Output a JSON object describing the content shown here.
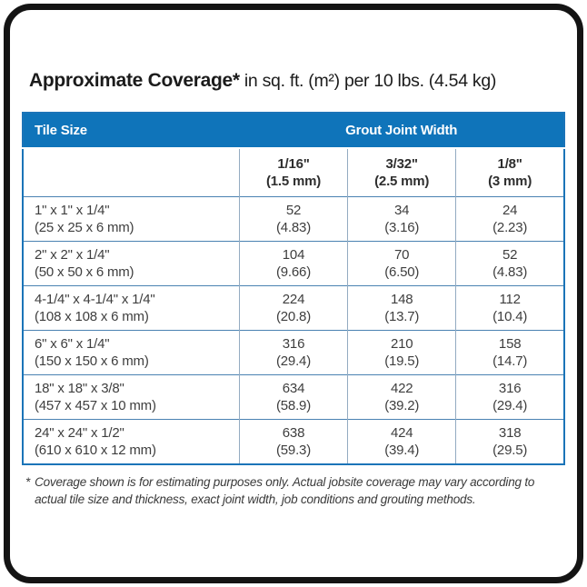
{
  "title": {
    "bold": "Approximate Coverage*",
    "rest": " in sq. ft. (m²) per 10 lbs. (4.54 kg)"
  },
  "colors": {
    "header_blue": "#0f74ba",
    "table_outer_border": "#1b74b8",
    "row_divider": "#4a82b2",
    "column_divider": "#93abc1",
    "card_border": "#141414",
    "body_text": "#3e3e3e"
  },
  "table": {
    "header": {
      "tile_size": "Tile Size",
      "grout_joint_width": "Grout Joint Width"
    },
    "columns": [
      {
        "size": "1/16\"",
        "mm": "(1.5 mm)"
      },
      {
        "size": "3/32\"",
        "mm": "(2.5 mm)"
      },
      {
        "size": "1/8\"",
        "mm": "(3 mm)"
      }
    ],
    "rows": [
      {
        "tile": "1\" x 1\" x 1/4\"",
        "tile_mm": "(25 x 25 x 6 mm)",
        "c1": "52",
        "c1m": "(4.83)",
        "c2": "34",
        "c2m": "(3.16)",
        "c3": "24",
        "c3m": "(2.23)"
      },
      {
        "tile": "2\" x 2\" x 1/4\"",
        "tile_mm": "(50 x 50 x 6 mm)",
        "c1": "104",
        "c1m": "(9.66)",
        "c2": "70",
        "c2m": "(6.50)",
        "c3": "52",
        "c3m": "(4.83)"
      },
      {
        "tile": "4-1/4\" x 4-1/4\" x 1/4\"",
        "tile_mm": "(108 x 108 x 6 mm)",
        "c1": "224",
        "c1m": "(20.8)",
        "c2": "148",
        "c2m": "(13.7)",
        "c3": "112",
        "c3m": "(10.4)"
      },
      {
        "tile": "6\" x 6\" x 1/4\"",
        "tile_mm": "(150 x 150 x 6 mm)",
        "c1": "316",
        "c1m": "(29.4)",
        "c2": "210",
        "c2m": "(19.5)",
        "c3": "158",
        "c3m": "(14.7)"
      },
      {
        "tile": "18\" x 18\" x 3/8\"",
        "tile_mm": "(457 x 457 x 10 mm)",
        "c1": "634",
        "c1m": "(58.9)",
        "c2": "422",
        "c2m": "(39.2)",
        "c3": "316",
        "c3m": "(29.4)"
      },
      {
        "tile": "24\" x 24\" x 1/2\"",
        "tile_mm": "(610 x 610 x 12 mm)",
        "c1": "638",
        "c1m": "(59.3)",
        "c2": "424",
        "c2m": "(39.4)",
        "c3": "318",
        "c3m": "(29.5)"
      }
    ]
  },
  "footnote": {
    "star": "*",
    "text": "Coverage shown is for estimating purposes only. Actual jobsite coverage may vary according to actual tile size and thickness, exact joint width, job conditions and grouting methods."
  }
}
